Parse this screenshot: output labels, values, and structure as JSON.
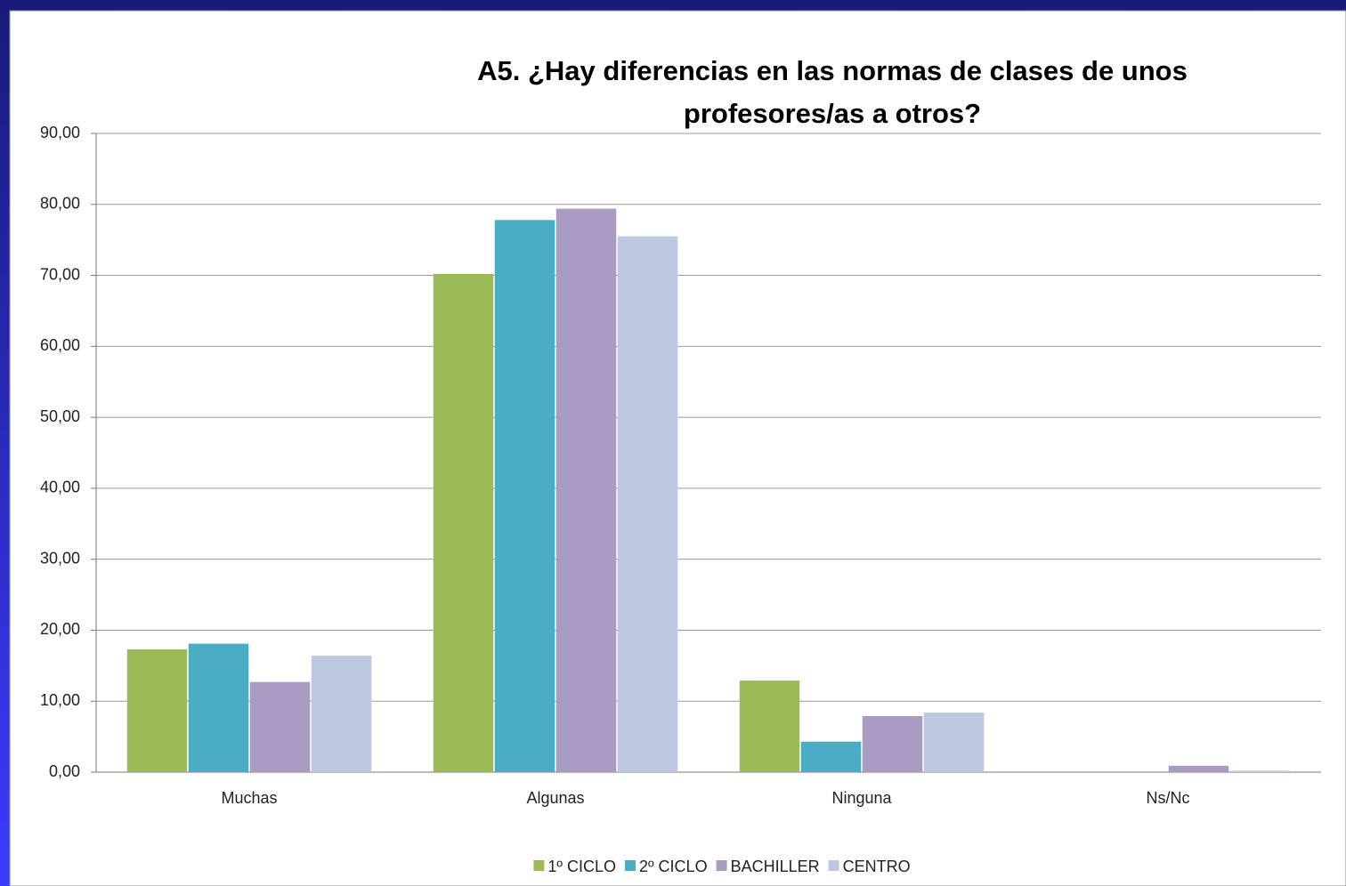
{
  "chart_data": {
    "type": "bar",
    "title": "A5. ¿Hay diferencias en las normas de clases de unos profesores/as a otros?",
    "categories": [
      "Muchas",
      "Algunas",
      "Ninguna",
      "Ns/Nc"
    ],
    "series": [
      {
        "name": "1º CICLO",
        "color": "#9bbb59",
        "values": [
          17.3,
          70.2,
          12.9,
          0
        ]
      },
      {
        "name": "2º CICLO",
        "color": "#4bacc6",
        "values": [
          18.1,
          77.8,
          4.3,
          0
        ]
      },
      {
        "name": "BACHILLER",
        "color": "#a99bc1",
        "values": [
          12.7,
          79.4,
          7.9,
          0.9
        ]
      },
      {
        "name": "CENTRO",
        "color": "#bcc8e0",
        "values": [
          16.4,
          75.5,
          8.4,
          0.2
        ]
      }
    ],
    "ylim": [
      0,
      90
    ],
    "yticks": [
      {
        "value": 0,
        "label": "0,00"
      },
      {
        "value": 10,
        "label": "10,00"
      },
      {
        "value": 20,
        "label": "20,00"
      },
      {
        "value": 30,
        "label": "30,00"
      },
      {
        "value": 40,
        "label": "40,00"
      },
      {
        "value": 50,
        "label": "50,00"
      },
      {
        "value": 60,
        "label": "60,00"
      },
      {
        "value": 70,
        "label": "70,00"
      },
      {
        "value": 80,
        "label": "80,00"
      },
      {
        "value": 90,
        "label": "90,00"
      }
    ],
    "grid": true,
    "legend": "bottom"
  }
}
